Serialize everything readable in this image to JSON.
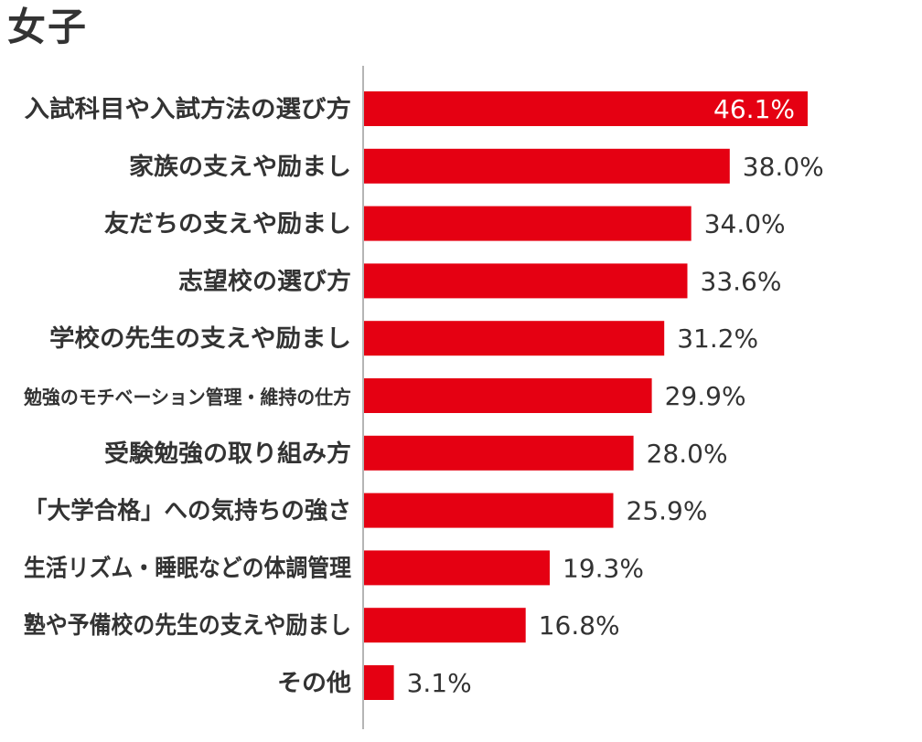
{
  "title": "女子",
  "colors": {
    "bar": "#e50012",
    "axis": "#b5b5b5",
    "text": "#333333",
    "inside_text": "#ffffff"
  },
  "chart_data": {
    "type": "bar",
    "orientation": "horizontal",
    "title": "女子",
    "categories": [
      "入試科目や入試方法の選び方",
      "家族の支えや励まし",
      "友だちの支えや励まし",
      "志望校の選び方",
      "学校の先生の支えや励まし",
      "勉強のモチベーション管理・維持の仕方",
      "受験勉強の取り組み方",
      "「大学合格」への気持ちの強さ",
      "生活リズム・睡眠などの体調管理",
      "塾や予備校の先生の支えや励まし",
      "その他"
    ],
    "values": [
      46.1,
      38.0,
      34.0,
      33.6,
      31.2,
      29.9,
      28.0,
      25.9,
      19.3,
      16.8,
      3.1
    ],
    "value_labels": [
      "46.1%",
      "38.0%",
      "34.0%",
      "33.6%",
      "31.2%",
      "29.9%",
      "28.0%",
      "25.9%",
      "19.3%",
      "16.8%",
      "3.1%"
    ],
    "unit": "%",
    "xlim": [
      0,
      50
    ],
    "grid": false,
    "legend": "none"
  }
}
